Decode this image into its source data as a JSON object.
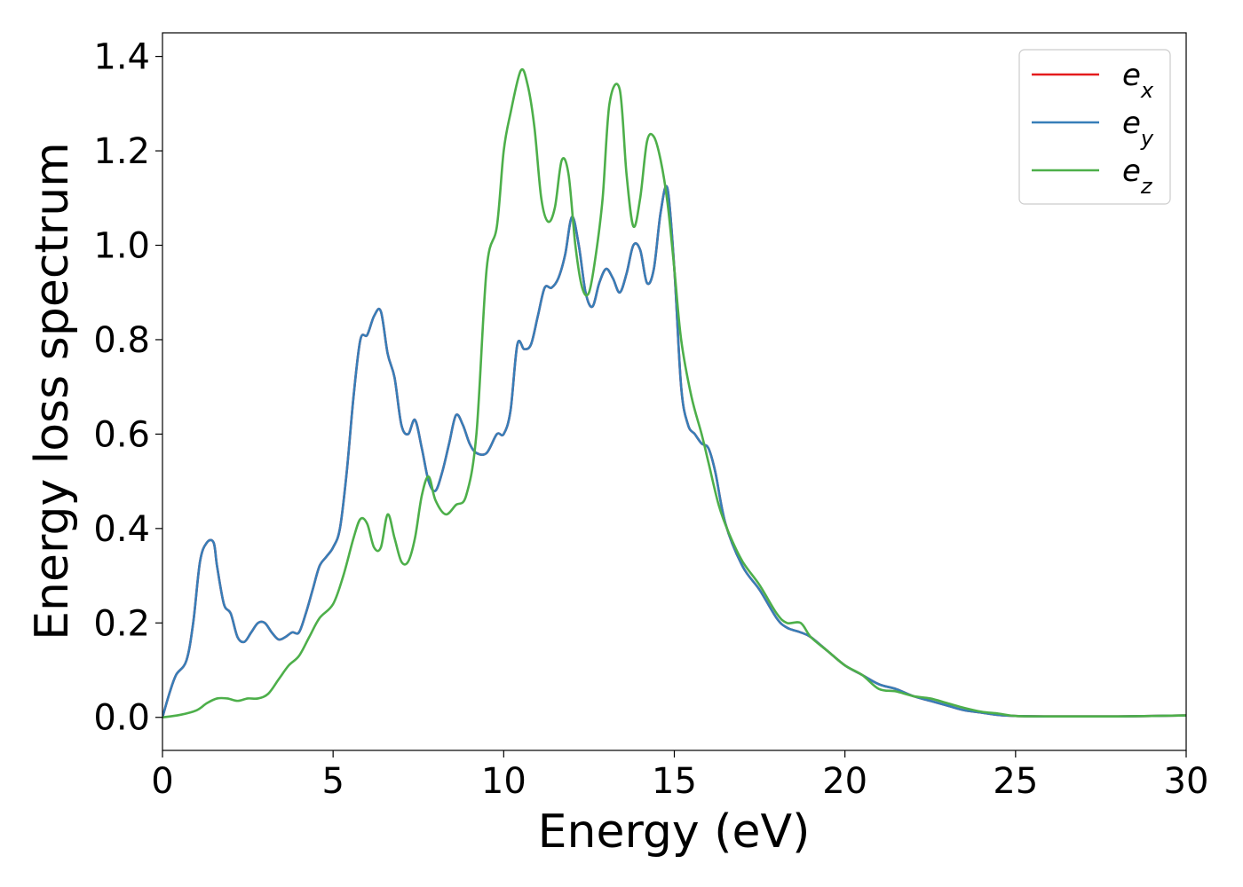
{
  "chart_data": {
    "type": "line",
    "title": "",
    "xlabel": "Energy (eV)",
    "ylabel": "Energy loss spectrum",
    "xlim": [
      0,
      30
    ],
    "ylim": [
      -0.07,
      1.45
    ],
    "xticks": [
      0,
      5,
      10,
      15,
      20,
      25,
      30
    ],
    "xtick_labels": [
      "0",
      "5",
      "10",
      "15",
      "20",
      "25",
      "30"
    ],
    "yticks": [
      0.0,
      0.2,
      0.4,
      0.6,
      0.8,
      1.0,
      1.2,
      1.4
    ],
    "ytick_labels": [
      "0.0",
      "0.2",
      "0.4",
      "0.6",
      "0.8",
      "1.0",
      "1.2",
      "1.4"
    ],
    "grid": false,
    "legend_position": "top-right",
    "series": [
      {
        "name": "e",
        "subscript": "x",
        "color": "#e41a1c",
        "x": [
          0,
          0.2,
          0.4,
          0.7,
          0.9,
          1.1,
          1.3,
          1.5,
          1.6,
          1.8,
          2.0,
          2.2,
          2.4,
          2.6,
          2.8,
          3.0,
          3.2,
          3.4,
          3.6,
          3.8,
          4.0,
          4.2,
          4.4,
          4.6,
          4.8,
          5.0,
          5.2,
          5.4,
          5.6,
          5.8,
          6.0,
          6.2,
          6.4,
          6.6,
          6.8,
          7.0,
          7.2,
          7.4,
          7.6,
          7.8,
          8.0,
          8.2,
          8.4,
          8.6,
          8.8,
          9.0,
          9.2,
          9.5,
          9.8,
          10.0,
          10.2,
          10.4,
          10.6,
          10.8,
          11.0,
          11.2,
          11.4,
          11.6,
          11.8,
          12.0,
          12.2,
          12.4,
          12.6,
          12.8,
          13.0,
          13.2,
          13.4,
          13.6,
          13.8,
          14.0,
          14.2,
          14.4,
          14.6,
          14.8,
          15.0,
          15.2,
          15.4,
          15.6,
          15.8,
          16.0,
          16.2,
          16.5,
          17.0,
          17.5,
          18.0,
          18.3,
          18.7,
          19.0,
          19.5,
          20.0,
          20.5,
          21.0,
          21.5,
          22.0,
          22.5,
          23.0,
          23.5,
          24.0,
          24.5,
          25.0,
          26.0,
          27.0,
          28.0,
          29.0,
          30.0
        ],
        "y": [
          0.0,
          0.05,
          0.09,
          0.12,
          0.2,
          0.33,
          0.37,
          0.37,
          0.32,
          0.24,
          0.22,
          0.17,
          0.16,
          0.18,
          0.2,
          0.2,
          0.18,
          0.165,
          0.17,
          0.18,
          0.18,
          0.22,
          0.27,
          0.32,
          0.34,
          0.36,
          0.4,
          0.52,
          0.68,
          0.8,
          0.81,
          0.85,
          0.86,
          0.77,
          0.72,
          0.62,
          0.6,
          0.63,
          0.57,
          0.5,
          0.48,
          0.52,
          0.58,
          0.64,
          0.62,
          0.58,
          0.56,
          0.56,
          0.6,
          0.6,
          0.65,
          0.79,
          0.78,
          0.79,
          0.85,
          0.91,
          0.91,
          0.93,
          0.98,
          1.06,
          1.0,
          0.9,
          0.87,
          0.92,
          0.95,
          0.93,
          0.9,
          0.94,
          1.0,
          0.99,
          0.92,
          0.95,
          1.07,
          1.12,
          0.95,
          0.7,
          0.62,
          0.6,
          0.58,
          0.57,
          0.52,
          0.41,
          0.32,
          0.27,
          0.21,
          0.19,
          0.18,
          0.17,
          0.14,
          0.11,
          0.09,
          0.07,
          0.06,
          0.045,
          0.035,
          0.025,
          0.015,
          0.01,
          0.005,
          0.003,
          0.002,
          0.002,
          0.002,
          0.003,
          0.004
        ]
      },
      {
        "name": "e",
        "subscript": "y",
        "color": "#377eb8",
        "x": [
          0,
          0.2,
          0.4,
          0.7,
          0.9,
          1.1,
          1.3,
          1.5,
          1.6,
          1.8,
          2.0,
          2.2,
          2.4,
          2.6,
          2.8,
          3.0,
          3.2,
          3.4,
          3.6,
          3.8,
          4.0,
          4.2,
          4.4,
          4.6,
          4.8,
          5.0,
          5.2,
          5.4,
          5.6,
          5.8,
          6.0,
          6.2,
          6.4,
          6.6,
          6.8,
          7.0,
          7.2,
          7.4,
          7.6,
          7.8,
          8.0,
          8.2,
          8.4,
          8.6,
          8.8,
          9.0,
          9.2,
          9.5,
          9.8,
          10.0,
          10.2,
          10.4,
          10.6,
          10.8,
          11.0,
          11.2,
          11.4,
          11.6,
          11.8,
          12.0,
          12.2,
          12.4,
          12.6,
          12.8,
          13.0,
          13.2,
          13.4,
          13.6,
          13.8,
          14.0,
          14.2,
          14.4,
          14.6,
          14.8,
          15.0,
          15.2,
          15.4,
          15.6,
          15.8,
          16.0,
          16.2,
          16.5,
          17.0,
          17.5,
          18.0,
          18.3,
          18.7,
          19.0,
          19.5,
          20.0,
          20.5,
          21.0,
          21.5,
          22.0,
          22.5,
          23.0,
          23.5,
          24.0,
          24.5,
          25.0,
          26.0,
          27.0,
          28.0,
          29.0,
          30.0
        ],
        "y": [
          0.0,
          0.05,
          0.09,
          0.12,
          0.2,
          0.33,
          0.37,
          0.37,
          0.32,
          0.24,
          0.22,
          0.17,
          0.16,
          0.18,
          0.2,
          0.2,
          0.18,
          0.165,
          0.17,
          0.18,
          0.18,
          0.22,
          0.27,
          0.32,
          0.34,
          0.36,
          0.4,
          0.52,
          0.68,
          0.8,
          0.81,
          0.85,
          0.86,
          0.77,
          0.72,
          0.62,
          0.6,
          0.63,
          0.57,
          0.5,
          0.48,
          0.52,
          0.58,
          0.64,
          0.62,
          0.58,
          0.56,
          0.56,
          0.6,
          0.6,
          0.65,
          0.79,
          0.78,
          0.79,
          0.85,
          0.91,
          0.91,
          0.93,
          0.98,
          1.06,
          1.0,
          0.9,
          0.87,
          0.92,
          0.95,
          0.93,
          0.9,
          0.94,
          1.0,
          0.99,
          0.92,
          0.95,
          1.07,
          1.12,
          0.95,
          0.7,
          0.62,
          0.6,
          0.58,
          0.57,
          0.52,
          0.41,
          0.32,
          0.27,
          0.21,
          0.19,
          0.18,
          0.17,
          0.14,
          0.11,
          0.09,
          0.07,
          0.06,
          0.045,
          0.035,
          0.025,
          0.015,
          0.01,
          0.005,
          0.003,
          0.002,
          0.002,
          0.002,
          0.003,
          0.004
        ]
      },
      {
        "name": "e",
        "subscript": "z",
        "color": "#4daf4a",
        "x": [
          0,
          0.5,
          1.0,
          1.3,
          1.6,
          1.9,
          2.2,
          2.5,
          2.8,
          3.1,
          3.4,
          3.7,
          4.0,
          4.3,
          4.6,
          5.0,
          5.3,
          5.6,
          5.8,
          6.0,
          6.2,
          6.4,
          6.6,
          6.8,
          7.0,
          7.2,
          7.4,
          7.6,
          7.8,
          8.0,
          8.3,
          8.6,
          8.9,
          9.2,
          9.5,
          9.8,
          10.0,
          10.2,
          10.5,
          10.7,
          10.9,
          11.1,
          11.3,
          11.5,
          11.7,
          11.9,
          12.1,
          12.3,
          12.5,
          12.7,
          12.9,
          13.1,
          13.4,
          13.6,
          13.8,
          14.0,
          14.2,
          14.4,
          14.6,
          14.8,
          15.0,
          15.2,
          15.5,
          15.8,
          16.0,
          16.3,
          16.6,
          17.0,
          17.5,
          18.0,
          18.3,
          18.7,
          19.0,
          19.5,
          20.0,
          20.5,
          21.0,
          21.5,
          22.0,
          22.5,
          23.0,
          23.5,
          24.0,
          24.5,
          25.0,
          26.0,
          27.0,
          28.0,
          29.0,
          30.0
        ],
        "y": [
          0.0,
          0.005,
          0.015,
          0.03,
          0.04,
          0.04,
          0.035,
          0.04,
          0.04,
          0.05,
          0.08,
          0.11,
          0.13,
          0.17,
          0.21,
          0.24,
          0.3,
          0.38,
          0.42,
          0.41,
          0.36,
          0.36,
          0.43,
          0.38,
          0.33,
          0.33,
          0.38,
          0.47,
          0.51,
          0.46,
          0.43,
          0.45,
          0.47,
          0.6,
          0.95,
          1.04,
          1.2,
          1.28,
          1.37,
          1.34,
          1.25,
          1.1,
          1.05,
          1.08,
          1.18,
          1.15,
          1.0,
          0.91,
          0.9,
          0.98,
          1.1,
          1.3,
          1.33,
          1.15,
          1.04,
          1.1,
          1.22,
          1.23,
          1.18,
          1.09,
          0.95,
          0.8,
          0.68,
          0.6,
          0.54,
          0.45,
          0.39,
          0.33,
          0.28,
          0.22,
          0.2,
          0.2,
          0.17,
          0.14,
          0.11,
          0.09,
          0.06,
          0.055,
          0.045,
          0.04,
          0.03,
          0.02,
          0.012,
          0.008,
          0.003,
          0.002,
          0.002,
          0.002,
          0.003,
          0.004
        ]
      }
    ]
  }
}
